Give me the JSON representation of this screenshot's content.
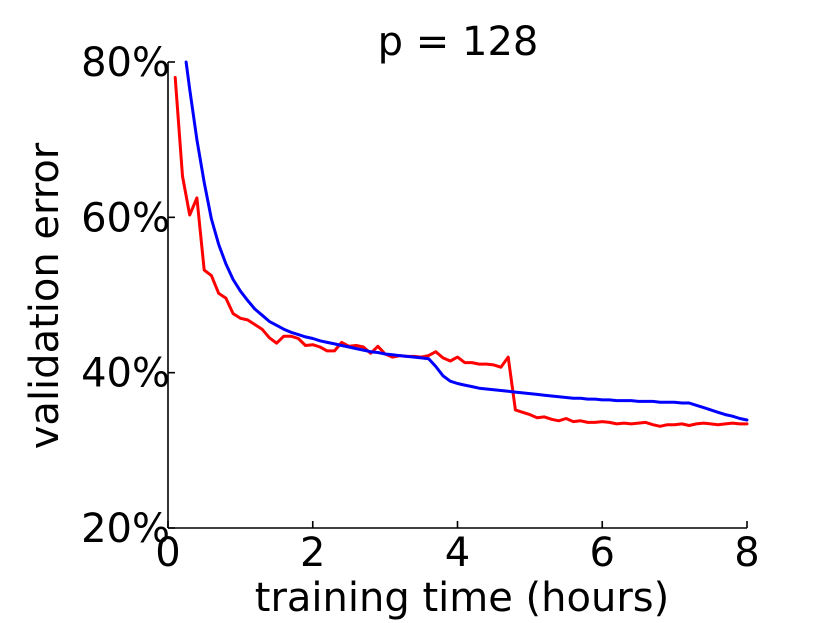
{
  "chart_data": {
    "type": "line",
    "title": "p = 128",
    "xlabel": "training time (hours)",
    "ylabel": "validation error",
    "xlim": [
      0,
      8
    ],
    "ylim": [
      20,
      80
    ],
    "x_ticks": [
      0,
      2,
      4,
      6,
      8
    ],
    "x_tick_labels": [
      "0",
      "2",
      "4",
      "6",
      "8"
    ],
    "y_ticks": [
      20,
      40,
      60,
      80
    ],
    "y_tick_labels": [
      "20%",
      "40%",
      "60%",
      "80%"
    ],
    "grid": false,
    "legend": false,
    "series": [
      {
        "color": "#ff0000",
        "x": [
          0.1,
          0.2,
          0.3,
          0.4,
          0.5,
          0.6,
          0.7,
          0.8,
          0.9,
          1.0,
          1.1,
          1.2,
          1.3,
          1.4,
          1.5,
          1.6,
          1.7,
          1.8,
          1.9,
          2.0,
          2.1,
          2.2,
          2.3,
          2.4,
          2.5,
          2.6,
          2.7,
          2.8,
          2.9,
          3.0,
          3.1,
          3.2,
          3.3,
          3.4,
          3.5,
          3.6,
          3.7,
          3.8,
          3.9,
          4.0,
          4.1,
          4.2,
          4.3,
          4.4,
          4.5,
          4.6,
          4.7,
          4.8,
          4.9,
          5.0,
          5.1,
          5.2,
          5.3,
          5.4,
          5.5,
          5.6,
          5.7,
          5.8,
          5.9,
          6.0,
          6.1,
          6.2,
          6.3,
          6.4,
          6.5,
          6.6,
          6.7,
          6.8,
          6.9,
          7.0,
          7.1,
          7.2,
          7.3,
          7.4,
          7.5,
          7.6,
          7.7,
          7.8,
          7.9,
          8.0
        ],
        "values": [
          78,
          65.3,
          60.3,
          62.5,
          53.2,
          52.5,
          50.2,
          49.6,
          47.6,
          47,
          46.8,
          46.2,
          45.6,
          44.5,
          43.8,
          44.7,
          44.7,
          44.4,
          43.5,
          43.6,
          43.3,
          42.8,
          42.8,
          43.9,
          43.4,
          43.5,
          43.3,
          42.5,
          43.4,
          42.4,
          42.0,
          42.2,
          42.1,
          42.1,
          42.0,
          42.2,
          42.7,
          41.9,
          41.5,
          42.0,
          41.3,
          41.3,
          41.1,
          41.1,
          41.0,
          40.7,
          42.0,
          35.2,
          34.9,
          34.6,
          34.2,
          34.3,
          34.0,
          33.8,
          34.1,
          33.7,
          33.8,
          33.6,
          33.6,
          33.7,
          33.6,
          33.4,
          33.5,
          33.4,
          33.5,
          33.6,
          33.3,
          33.1,
          33.3,
          33.3,
          33.4,
          33.2,
          33.4,
          33.5,
          33.4,
          33.3,
          33.4,
          33.5,
          33.4,
          33.4
        ],
        "smooth": false
      },
      {
        "color": "#0000ff",
        "x": [
          0.25,
          0.3,
          0.4,
          0.5,
          0.6,
          0.7,
          0.8,
          0.9,
          1.0,
          1.1,
          1.2,
          1.3,
          1.4,
          1.5,
          1.6,
          1.7,
          1.8,
          1.9,
          2.0,
          2.1,
          2.2,
          2.3,
          2.4,
          2.5,
          2.6,
          2.7,
          2.8,
          2.9,
          3.0,
          3.1,
          3.2,
          3.3,
          3.4,
          3.5,
          3.6,
          3.7,
          3.8,
          3.9,
          4.0,
          4.1,
          4.2,
          4.3,
          4.4,
          4.5,
          4.6,
          4.7,
          4.8,
          4.9,
          5.0,
          5.1,
          5.2,
          5.3,
          5.4,
          5.5,
          5.6,
          5.7,
          5.8,
          5.9,
          6.0,
          6.1,
          6.2,
          6.3,
          6.4,
          6.5,
          6.6,
          6.7,
          6.8,
          6.9,
          7.0,
          7.1,
          7.2,
          7.3,
          7.4,
          7.5,
          7.6,
          7.7,
          7.8,
          7.9,
          8.0
        ],
        "values": [
          80,
          76.5,
          70,
          64.5,
          59.8,
          56.5,
          54,
          52,
          50.5,
          49.3,
          48.2,
          47.4,
          46.6,
          46.1,
          45.6,
          45.2,
          44.9,
          44.6,
          44.4,
          44.1,
          43.9,
          43.7,
          43.5,
          43.3,
          43.1,
          42.9,
          42.7,
          42.6,
          42.4,
          42.3,
          42.2,
          42.1,
          42.0,
          41.9,
          41.8,
          40.8,
          39.6,
          38.9,
          38.6,
          38.4,
          38.2,
          38.0,
          37.9,
          37.8,
          37.7,
          37.6,
          37.5,
          37.4,
          37.3,
          37.2,
          37.1,
          37.0,
          36.9,
          36.8,
          36.7,
          36.7,
          36.6,
          36.6,
          36.5,
          36.5,
          36.4,
          36.4,
          36.4,
          36.3,
          36.3,
          36.3,
          36.2,
          36.2,
          36.2,
          36.1,
          36.1,
          35.8,
          35.5,
          35.2,
          34.9,
          34.6,
          34.4,
          34.1,
          33.9
        ],
        "smooth": true
      }
    ]
  }
}
